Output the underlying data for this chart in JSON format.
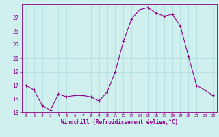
{
  "x": [
    0,
    1,
    2,
    3,
    4,
    5,
    6,
    7,
    8,
    9,
    10,
    11,
    12,
    13,
    14,
    15,
    16,
    17,
    18,
    19,
    20,
    21,
    22,
    23
  ],
  "y": [
    17.0,
    16.3,
    14.0,
    13.3,
    15.7,
    15.3,
    15.5,
    15.5,
    15.3,
    14.7,
    16.0,
    19.0,
    23.5,
    26.8,
    28.2,
    28.5,
    27.7,
    27.2,
    27.5,
    25.8,
    21.3,
    17.0,
    16.3,
    15.5
  ],
  "line_color": "#8B008B",
  "marker": "+",
  "marker_size": 3,
  "bg_color": "#d0f0f0",
  "xlabel": "Windchill (Refroidissement éolien,°C)",
  "ylim": [
    13,
    29
  ],
  "xlim": [
    -0.5,
    23.5
  ],
  "yticks": [
    13,
    15,
    17,
    19,
    21,
    23,
    25,
    27
  ],
  "xticks": [
    0,
    1,
    2,
    3,
    4,
    5,
    6,
    7,
    8,
    9,
    10,
    11,
    12,
    13,
    14,
    15,
    16,
    17,
    18,
    19,
    20,
    21,
    22,
    23
  ],
  "xlabel_color": "#8B008B",
  "tick_color": "#8B008B",
  "grid_line_color": "#aadddd",
  "spine_color": "#8B008B"
}
